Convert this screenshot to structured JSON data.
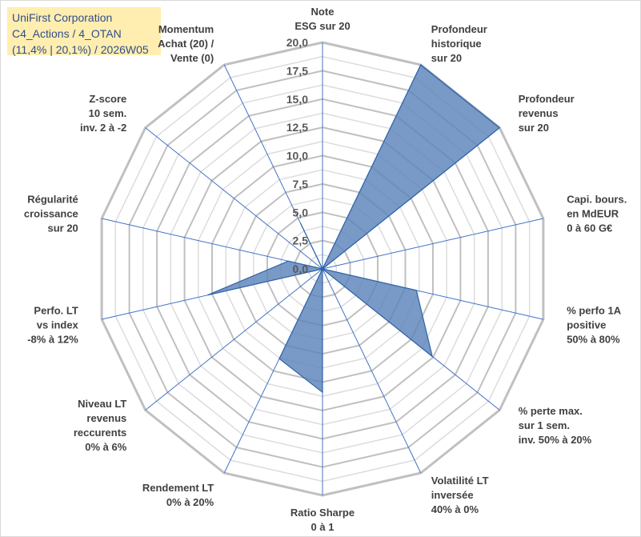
{
  "title": {
    "line1": "UniFirst Corporation",
    "line2": "C4_Actions / 4_OTAN",
    "line3": "(11,4% | 20,1%) / 2026W05"
  },
  "colors": {
    "fill": "#5b84b9",
    "stroke": "#2e62a8",
    "grid": "#bfbfbf",
    "spoke": "#4472c4",
    "title_bg": "#ffeeb0",
    "title_text": "#2f4e8a"
  },
  "chart_data": {
    "type": "radar",
    "rmax": 20,
    "ticks": [
      "0,0",
      "2,5",
      "5,0",
      "7,5",
      "10,0",
      "12,5",
      "15,0",
      "17,5",
      "20,0"
    ],
    "axes": [
      {
        "label": [
          "Note",
          "ESG sur 20"
        ],
        "value": 0
      },
      {
        "label": [
          "Profondeur",
          "historique",
          "sur 20"
        ],
        "value": 20
      },
      {
        "label": [
          "Profondeur",
          "revenus",
          "sur 20"
        ],
        "value": 20
      },
      {
        "label": [
          "Capi. bours.",
          "en MdEUR",
          "0 à 60 G€"
        ],
        "value": 0
      },
      {
        "label": [
          "% perfo 1A",
          "positive",
          "50% à 80%"
        ],
        "value": 8.5
      },
      {
        "label": [
          "% perte max.",
          "sur 1 sem.",
          "inv. 50% à 20%"
        ],
        "value": 12.4
      },
      {
        "label": [
          "Volatilité LT",
          "inversée",
          "40% à 0%"
        ],
        "value": 0
      },
      {
        "label": [
          "Ratio Sharpe",
          "0 à 1"
        ],
        "value": 10.9
      },
      {
        "label": [
          "Rendement LT",
          "0% à 20%"
        ],
        "value": 8.8
      },
      {
        "label": [
          "Niveau LT",
          "revenus",
          "reccurents",
          "0% à 6%"
        ],
        "value": 0
      },
      {
        "label": [
          "Perfo. LT",
          "vs index",
          "-8% à 12%"
        ],
        "value": 10.4
      },
      {
        "label": [
          "Régularité",
          "croissance",
          "sur 20"
        ],
        "value": 3.1
      },
      {
        "label": [
          "Z-score",
          "10 sem.",
          "inv. 2 à -2"
        ],
        "value": 0
      },
      {
        "label": [
          "Momentum",
          "Achat (20) /",
          "Vente (0)"
        ],
        "value": 4.5
      }
    ]
  }
}
